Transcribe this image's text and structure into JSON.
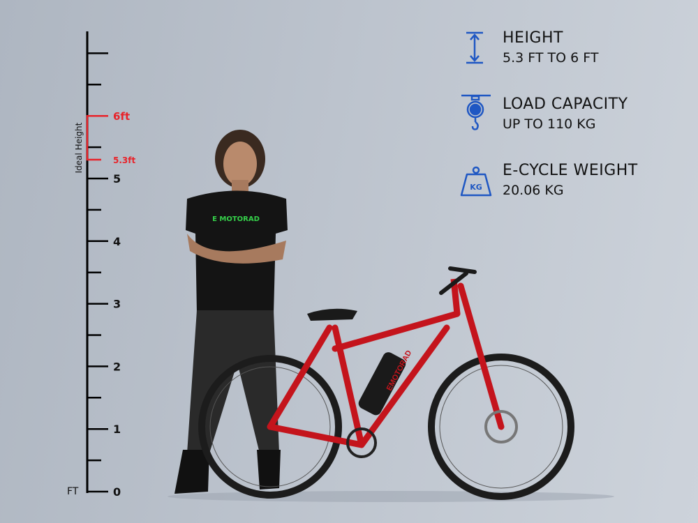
{
  "ruler": {
    "unit_label": "FT",
    "tick_labels": [
      "0",
      "1",
      "2",
      "3",
      "4",
      "5"
    ],
    "ideal_label": "Ideal Height",
    "ideal_max_label": "6ft",
    "ideal_min_label": "5.3ft",
    "ideal_range_ft": [
      5.3,
      6
    ],
    "max_tick_ft": 7,
    "accent_color": "#e8232a"
  },
  "specs": [
    {
      "icon": "height-arrows-icon",
      "title": "HEIGHT",
      "value": "5.3 FT TO 6 FT"
    },
    {
      "icon": "hanging-scale-icon",
      "title": "LOAD CAPACITY",
      "value": "UP TO 110 KG"
    },
    {
      "icon": "kg-weight-icon",
      "title": "E-CYCLE WEIGHT",
      "value": "20.06 KG",
      "icon_text": "KG"
    }
  ],
  "icon_color": "#1f57c3",
  "brand": {
    "shirt_logo": "E MOTORAD",
    "frame_logo": "EMOTORAD"
  }
}
